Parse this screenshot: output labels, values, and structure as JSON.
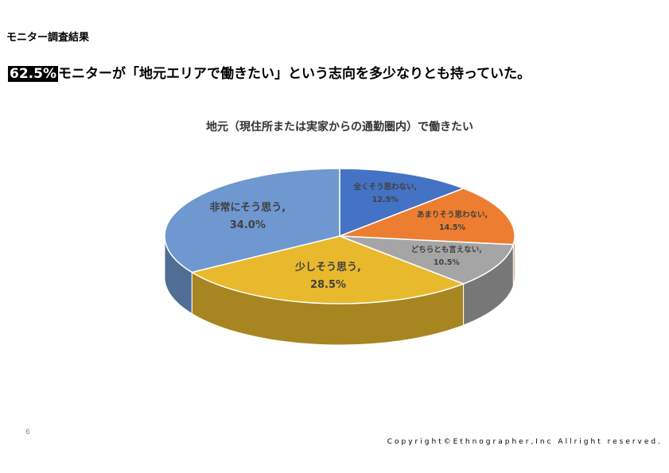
{
  "slide": {
    "section": "モニター調査結果",
    "highlight": "62.5%",
    "headline": "モニターが「地元エリアで働きたい」という志向を多少なりとも持っていた。",
    "page": "6",
    "copyright": "Copyright©Ethnographer,Inc Allright reserved."
  },
  "chart_data": {
    "type": "pie",
    "title": "地元（現住所または実家からの通勤圏内）で働きたい",
    "categories": [
      "全くそう思わない,",
      "あまりそう思わない,",
      "どちらとも言えない,",
      "少しそう思う,",
      "非常にそう思う,"
    ],
    "values": [
      12.5,
      14.5,
      10.5,
      28.5,
      34
    ],
    "value_labels": [
      "12.5%",
      "14.5%",
      "10.5%",
      "28.5%",
      "34.0%"
    ],
    "colors": [
      "#4472c4",
      "#ed7d31",
      "#a5a5a5",
      "#e8b92c",
      "#6f97d0"
    ]
  }
}
